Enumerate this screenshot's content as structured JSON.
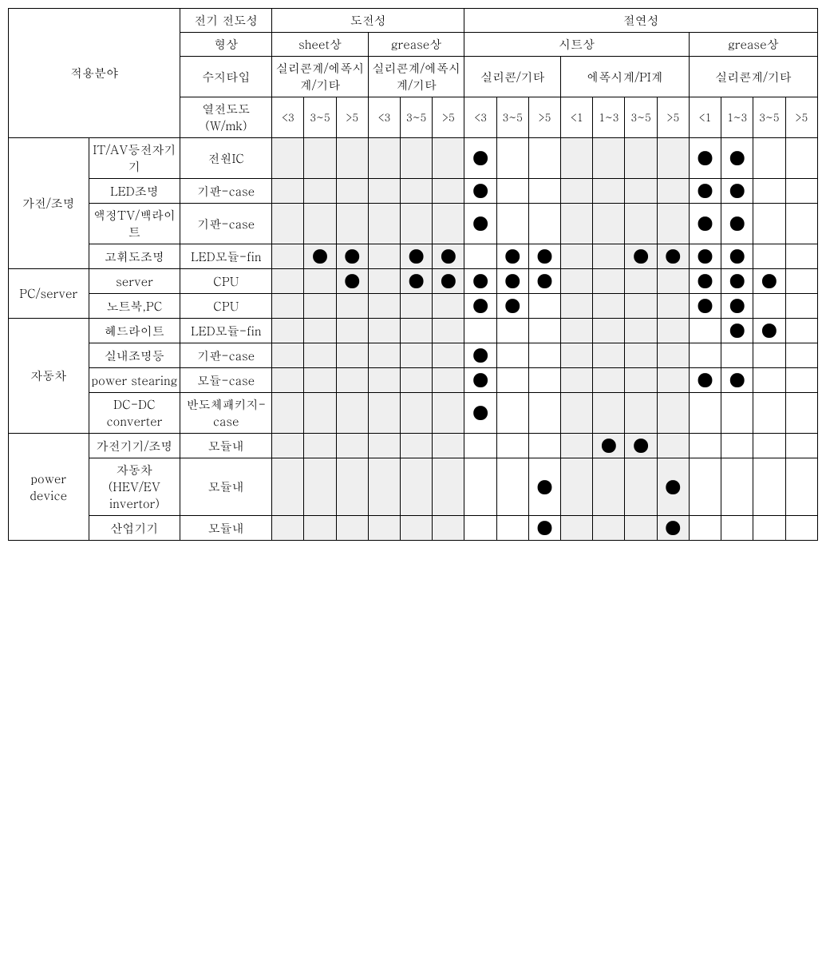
{
  "headers": {
    "application_field": "적용분야",
    "elec_cond": "전기\n전도성",
    "conductive": "도전성",
    "insulating": "절연성",
    "shape": "형상",
    "sheet_shape": "sheet상",
    "grease_shape": "grease상",
    "sheet_shape_kr": "시트상",
    "resin_type": "수지타입",
    "silicone_epoxy_etc": "실리콘계/에폭시계/기타",
    "silicon_etc": "실리콘/기타",
    "epoxy_pi": "에폭시계/PI계",
    "silicone_etc2": "실리콘계/기타",
    "thermal_cond": "열전도도(W/mk)",
    "lt3": "<3",
    "r35": "3~5",
    "gt5": ">5",
    "lt1": "<1",
    "r13": "1~3"
  },
  "categories": {
    "home_lighting": "가전/조명",
    "pc_server": "PC/server",
    "automotive": "자동차",
    "power_device": "power device"
  },
  "rows": [
    {
      "cat": "home_lighting",
      "sub": "IT/AV등전자기기",
      "resin": "전원IC",
      "dots": [
        0,
        0,
        0,
        0,
        0,
        0,
        1,
        0,
        0,
        0,
        0,
        0,
        0,
        1,
        1,
        0,
        0
      ]
    },
    {
      "cat": "home_lighting",
      "sub": "LED조명",
      "resin": "기판-case",
      "dots": [
        0,
        0,
        0,
        0,
        0,
        0,
        1,
        0,
        0,
        0,
        0,
        0,
        0,
        1,
        1,
        0,
        0
      ]
    },
    {
      "cat": "home_lighting",
      "sub": "액정TV/백라이트",
      "resin": "기판-case",
      "dots": [
        0,
        0,
        0,
        0,
        0,
        0,
        1,
        0,
        0,
        0,
        0,
        0,
        0,
        1,
        1,
        0,
        0
      ]
    },
    {
      "cat": "home_lighting",
      "sub": "고휘도조명",
      "resin": "LED모듈-fin",
      "dots": [
        0,
        1,
        1,
        0,
        1,
        1,
        0,
        1,
        1,
        0,
        0,
        1,
        1,
        1,
        1,
        0,
        0
      ]
    },
    {
      "cat": "pc_server",
      "sub": "server",
      "resin": "CPU",
      "dots": [
        0,
        0,
        1,
        0,
        1,
        1,
        1,
        1,
        1,
        0,
        0,
        0,
        0,
        1,
        1,
        1,
        0
      ]
    },
    {
      "cat": "pc_server",
      "sub": "노트북,PC",
      "resin": "CPU",
      "dots": [
        0,
        0,
        0,
        0,
        0,
        0,
        1,
        1,
        0,
        0,
        0,
        0,
        0,
        1,
        1,
        0,
        0
      ]
    },
    {
      "cat": "automotive",
      "sub": "헤드라이트",
      "resin": "LED모듈-fin",
      "dots": [
        0,
        0,
        0,
        0,
        0,
        0,
        0,
        0,
        0,
        0,
        0,
        0,
        0,
        0,
        1,
        1,
        0
      ]
    },
    {
      "cat": "automotive",
      "sub": "실내조명등",
      "resin": "기판-case",
      "dots": [
        0,
        0,
        0,
        0,
        0,
        0,
        1,
        0,
        0,
        0,
        0,
        0,
        0,
        0,
        0,
        0,
        0
      ]
    },
    {
      "cat": "automotive",
      "sub": "power stearing",
      "resin": "모듈-case",
      "dots": [
        0,
        0,
        0,
        0,
        0,
        0,
        1,
        0,
        0,
        0,
        0,
        0,
        0,
        1,
        1,
        0,
        0
      ]
    },
    {
      "cat": "automotive",
      "sub": "DC-DC converter",
      "resin": "반도체패키지-case",
      "dots": [
        0,
        0,
        0,
        0,
        0,
        0,
        1,
        0,
        0,
        0,
        0,
        0,
        0,
        0,
        0,
        0,
        0
      ]
    },
    {
      "cat": "power_device",
      "sub": "가전기기/조명",
      "resin": "모듈내",
      "dots": [
        0,
        0,
        0,
        0,
        0,
        0,
        0,
        0,
        0,
        0,
        1,
        1,
        0,
        0,
        0,
        0,
        0
      ]
    },
    {
      "cat": "power_device",
      "sub": "자동차(HEV/EV invertor)",
      "resin": "모듈내",
      "dots": [
        0,
        0,
        0,
        0,
        0,
        0,
        0,
        0,
        1,
        0,
        0,
        0,
        1,
        0,
        0,
        0,
        0
      ]
    },
    {
      "cat": "power_device",
      "sub": "산업기기",
      "resin": "모듈내",
      "dots": [
        0,
        0,
        0,
        0,
        0,
        0,
        0,
        0,
        1,
        0,
        0,
        0,
        1,
        0,
        0,
        0,
        0
      ]
    }
  ],
  "styling": {
    "dot_char": "●",
    "shaded_bg": "#efefef",
    "border_color": "#000000",
    "font_family": "Batang, serif",
    "base_font_size": 15
  },
  "category_spans": {
    "home_lighting": 4,
    "pc_server": 2,
    "automotive": 4,
    "power_device": 3
  }
}
